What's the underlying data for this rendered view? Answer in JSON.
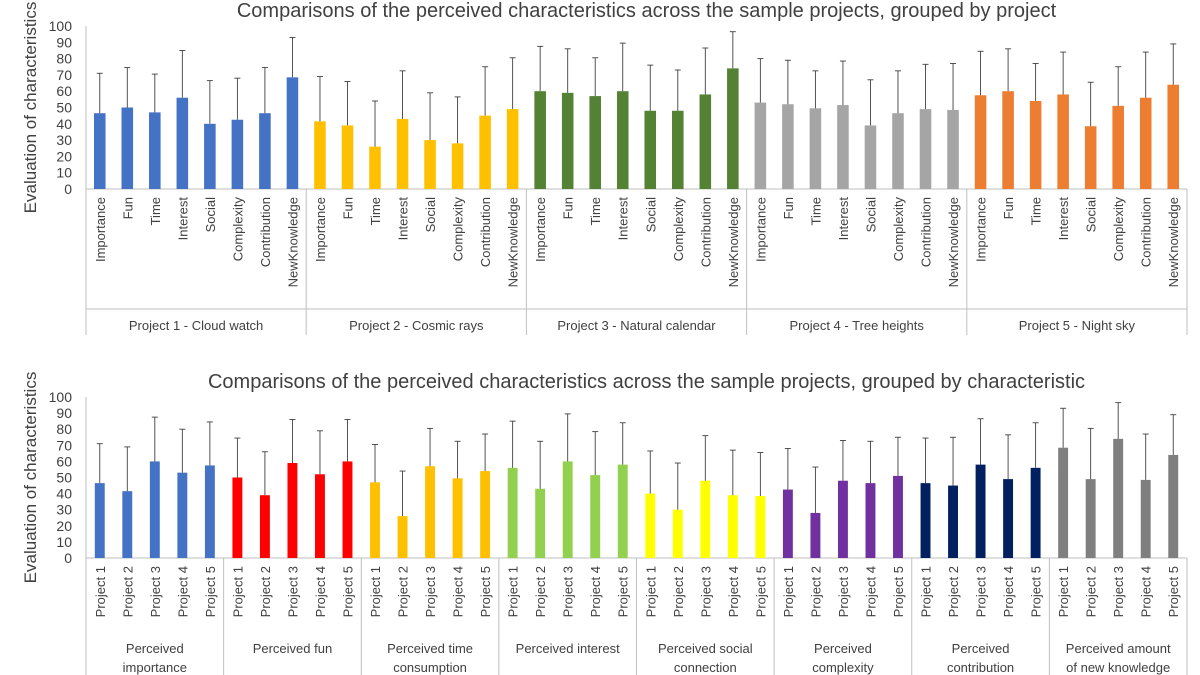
{
  "chart_data": [
    {
      "type": "bar",
      "title": "Comparisons of the perceived characteristics across the sample projects, grouped by project",
      "ylabel": "Evaluation of characteristics",
      "xlabel": "",
      "ylim": [
        0,
        100
      ],
      "yticks": [
        0,
        10,
        20,
        30,
        40,
        50,
        60,
        70,
        80,
        90,
        100
      ],
      "grid": false,
      "groups": [
        {
          "name": "Project 1 - Cloud watch",
          "color": "#4472C4",
          "categories": [
            "Importance",
            "Fun",
            "Time",
            "Interest",
            "Social",
            "Complexity",
            "Contribution",
            "NewKnowledge"
          ],
          "values": [
            46.5,
            50,
            47,
            56,
            40,
            42.5,
            46.5,
            68.5
          ],
          "errors": [
            24.5,
            24.5,
            23.5,
            29,
            26.5,
            25.5,
            28,
            24.5
          ]
        },
        {
          "name": "Project 2 - Cosmic rays",
          "color": "#FFC000",
          "categories": [
            "Importance",
            "Fun",
            "Time",
            "Interest",
            "Social",
            "Complexity",
            "Contribution",
            "NewKnowledge"
          ],
          "values": [
            41.5,
            39,
            26,
            43,
            30,
            28,
            45,
            49
          ],
          "errors": [
            27.5,
            27,
            28,
            29.5,
            29,
            28.5,
            30,
            31.5
          ]
        },
        {
          "name": "Project 3 - Natural calendar",
          "color": "#548235",
          "categories": [
            "Importance",
            "Fun",
            "Time",
            "Interest",
            "Social",
            "Complexity",
            "Contribution",
            "NewKnowledge"
          ],
          "values": [
            60,
            59,
            57,
            60,
            48,
            48,
            58,
            74
          ],
          "errors": [
            27.5,
            27,
            23.5,
            29.5,
            28,
            25,
            28.5,
            22.5
          ]
        },
        {
          "name": "Project 4 - Tree heights",
          "color": "#A5A5A5",
          "categories": [
            "Importance",
            "Fun",
            "Time",
            "Interest",
            "Social",
            "Complexity",
            "Contribution",
            "NewKnowledge"
          ],
          "values": [
            53,
            52,
            49.5,
            51.5,
            39,
            46.5,
            49,
            48.5
          ],
          "errors": [
            27,
            27,
            23,
            27,
            28,
            26,
            27.5,
            28.5
          ]
        },
        {
          "name": "Project 5 - Night sky",
          "color": "#ED7D31",
          "categories": [
            "Importance",
            "Fun",
            "Time",
            "Interest",
            "Social",
            "Complexity",
            "Contribution",
            "NewKnowledge"
          ],
          "values": [
            57.5,
            60,
            54,
            58,
            38.5,
            51,
            56,
            64
          ],
          "errors": [
            27,
            26,
            23,
            26,
            27,
            24,
            28,
            25
          ]
        }
      ]
    },
    {
      "type": "bar",
      "title": "Comparisons of the perceived characteristics across the sample projects, grouped by characteristic",
      "ylabel": "Evaluation of characteristics",
      "xlabel": "",
      "ylim": [
        0,
        100
      ],
      "yticks": [
        0,
        10,
        20,
        30,
        40,
        50,
        60,
        70,
        80,
        90,
        100
      ],
      "grid": false,
      "groups": [
        {
          "name_lines": [
            "Perceived",
            "importance"
          ],
          "color": "#4472C4",
          "categories": [
            "Project 1",
            "Project 2",
            "Project 3",
            "Project 4",
            "Project 5"
          ],
          "values": [
            46.5,
            41.5,
            60,
            53,
            57.5
          ],
          "errors": [
            24.5,
            27.5,
            27.5,
            27,
            27
          ]
        },
        {
          "name_lines": [
            "Perceived fun"
          ],
          "color": "#FF0000",
          "categories": [
            "Project 1",
            "Project 2",
            "Project 3",
            "Project 4",
            "Project 5"
          ],
          "values": [
            50,
            39,
            59,
            52,
            60
          ],
          "errors": [
            24.5,
            27,
            27,
            27,
            26
          ]
        },
        {
          "name_lines": [
            "Perceived time",
            "consumption"
          ],
          "color": "#FFC000",
          "categories": [
            "Project 1",
            "Project 2",
            "Project 3",
            "Project 4",
            "Project 5"
          ],
          "values": [
            47,
            26,
            57,
            49.5,
            54
          ],
          "errors": [
            23.5,
            28,
            23.5,
            23,
            23
          ]
        },
        {
          "name_lines": [
            "Perceived interest"
          ],
          "color": "#92D050",
          "categories": [
            "Project 1",
            "Project 2",
            "Project 3",
            "Project 4",
            "Project 5"
          ],
          "values": [
            56,
            43,
            60,
            51.5,
            58
          ],
          "errors": [
            29,
            29.5,
            29.5,
            27,
            26
          ]
        },
        {
          "name_lines": [
            "Perceived social",
            "connection"
          ],
          "color": "#FFFF00",
          "categories": [
            "Project 1",
            "Project 2",
            "Project 3",
            "Project 4",
            "Project 5"
          ],
          "values": [
            40,
            30,
            48,
            39,
            38.5
          ],
          "errors": [
            26.5,
            29,
            28,
            28,
            27
          ]
        },
        {
          "name_lines": [
            "Perceived",
            "complexity"
          ],
          "color": "#7030A0",
          "categories": [
            "Project 1",
            "Project 2",
            "Project 3",
            "Project 4",
            "Project 5"
          ],
          "values": [
            42.5,
            28,
            48,
            46.5,
            51
          ],
          "errors": [
            25.5,
            28.5,
            25,
            26,
            24
          ]
        },
        {
          "name_lines": [
            "Perceived",
            "contribution"
          ],
          "color": "#002060",
          "categories": [
            "Project 1",
            "Project 2",
            "Project 3",
            "Project 4",
            "Project 5"
          ],
          "values": [
            46.5,
            45,
            58,
            49,
            56
          ],
          "errors": [
            28,
            30,
            28.5,
            27.5,
            28
          ]
        },
        {
          "name_lines": [
            "Perceived amount",
            "of new knowledge"
          ],
          "color": "#7F7F7F",
          "categories": [
            "Project 1",
            "Project 2",
            "Project 3",
            "Project 4",
            "Project 5"
          ],
          "values": [
            68.5,
            49,
            74,
            48.5,
            64
          ],
          "errors": [
            24.5,
            31.5,
            22.5,
            28.5,
            25
          ]
        }
      ]
    }
  ]
}
